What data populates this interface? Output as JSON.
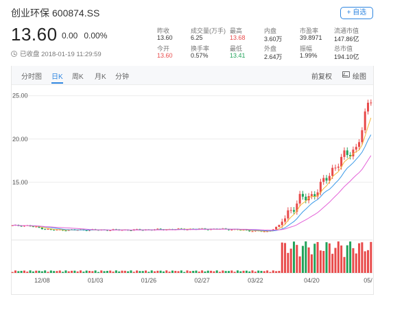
{
  "stock": {
    "name": "创业环保",
    "code": "600874.SS",
    "add_label": "+ 自选",
    "price": "13.60",
    "change": "0.00",
    "change_pct": "0.00%",
    "status": "已收盘 2018-01-19 11:29:59"
  },
  "stats": [
    {
      "label": "昨收",
      "value": "13.60",
      "color": "normal"
    },
    {
      "label": "成交量(万手)",
      "value": "6.25",
      "color": "normal"
    },
    {
      "label": "最高",
      "value": "13.68",
      "color": "red"
    },
    {
      "label": "内盘",
      "value": "3.60万",
      "color": "normal"
    },
    {
      "label": "市盈率",
      "value": "39.8971",
      "color": "normal"
    },
    {
      "label": "流通市值",
      "value": "147.86亿",
      "color": "normal"
    },
    {
      "label": "今开",
      "value": "13.60",
      "color": "red"
    },
    {
      "label": "换手率",
      "value": "0.57%",
      "color": "normal"
    },
    {
      "label": "最低",
      "value": "13.41",
      "color": "green"
    },
    {
      "label": "外盘",
      "value": "2.64万",
      "color": "normal"
    },
    {
      "label": "振幅",
      "value": "1.99%",
      "color": "normal"
    },
    {
      "label": "总市值",
      "value": "194.10亿",
      "color": "normal"
    }
  ],
  "tabs": [
    {
      "label": "分时图",
      "active": false
    },
    {
      "label": "日K",
      "active": true
    },
    {
      "label": "周K",
      "active": false
    },
    {
      "label": "月K",
      "active": false
    },
    {
      "label": "分钟",
      "active": false
    }
  ],
  "tools": {
    "adjust": "前复权",
    "draw": "绘图"
  },
  "chart_data": {
    "type": "candlestick",
    "y_ticks": [
      "25.00",
      "20.00",
      "15.00"
    ],
    "y_tick_values": [
      25,
      20,
      15
    ],
    "ylim": [
      8.5,
      26
    ],
    "x_labels": [
      "12/08",
      "01/03",
      "01/26",
      "02/27",
      "03/22",
      "04/20",
      "05/"
    ],
    "x_label_index": [
      10,
      28,
      46,
      64,
      82,
      101,
      120
    ],
    "n_days": 122,
    "colors": {
      "up": "#e84a4a",
      "down": "#21a35a",
      "ma5": "#f5b73b",
      "ma10": "#3a9ae8",
      "ma20": "#e35fd7"
    },
    "key_points": [
      [
        0,
        10.0
      ],
      [
        5,
        10.0
      ],
      [
        13,
        9.5
      ],
      [
        28,
        9.5
      ],
      [
        40,
        9.5
      ],
      [
        60,
        9.6
      ],
      [
        72,
        9.6
      ],
      [
        86,
        9.3
      ],
      [
        90,
        10.0
      ],
      [
        93,
        11.5
      ],
      [
        97,
        13.0
      ],
      [
        101,
        13.5
      ],
      [
        104,
        14.5
      ],
      [
        108,
        16.5
      ],
      [
        112,
        18.0
      ],
      [
        116,
        19.0
      ],
      [
        118,
        21.0
      ],
      [
        120,
        24.0
      ],
      [
        121,
        24.8
      ]
    ],
    "volume_max": 10
  }
}
